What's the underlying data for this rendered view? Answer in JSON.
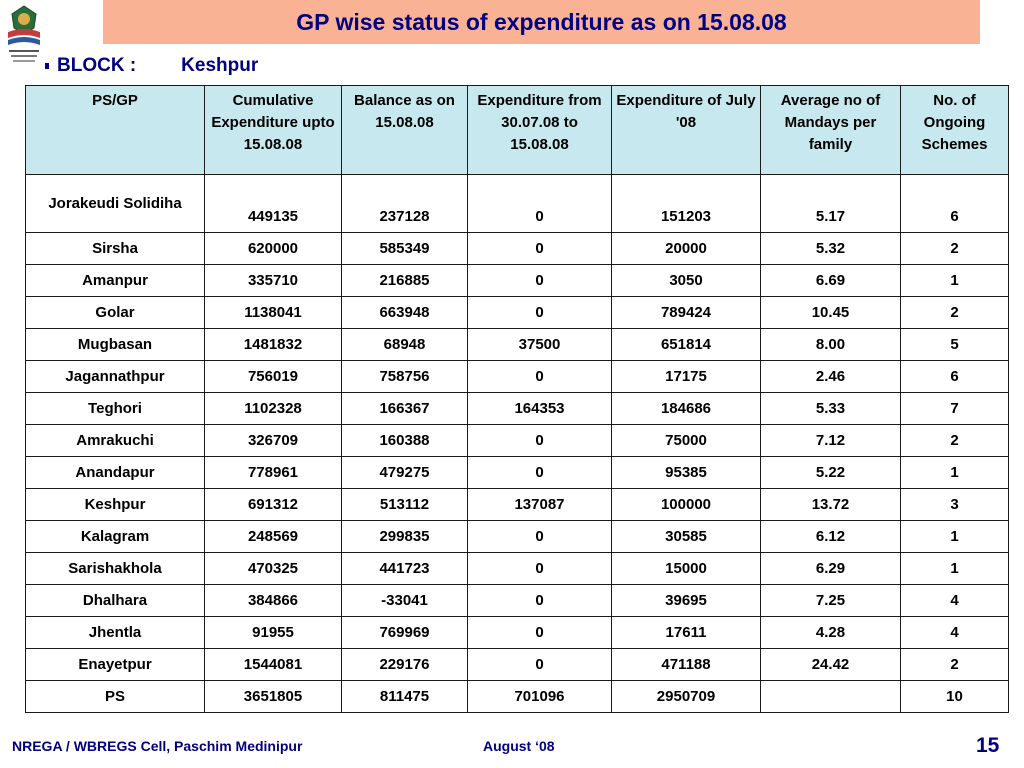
{
  "slide": {
    "title": "GP wise status of expenditure as on 15.08.08",
    "block_label": "BLOCK :",
    "block_value": "Keshpur",
    "footer_left": "NREGA / WBREGS Cell, Paschim Medinipur",
    "footer_mid": "August ‘08",
    "page_number": "15"
  },
  "colors": {
    "title_bg": "#f9b294",
    "title_text": "#000080",
    "header_bg": "#c7e8ee"
  },
  "logo": {
    "icon": "nrega-emblem-icon"
  },
  "table": {
    "headers": [
      "PS/GP",
      "Cumulative Expenditure upto 15.08.08",
      "Balance as on 15.08.08",
      "Expenditure from 30.07.08 to 15.08.08",
      "Expenditure of  July '08",
      "Average no of Mandays per family",
      "No. of Ongoing Schemes"
    ],
    "rows": [
      [
        "Jorakeudi Solidiha",
        "449135",
        "237128",
        "0",
        "151203",
        "5.17",
        "6"
      ],
      [
        "Sirsha",
        "620000",
        "585349",
        "0",
        "20000",
        "5.32",
        "2"
      ],
      [
        "Amanpur",
        "335710",
        "216885",
        "0",
        "3050",
        "6.69",
        "1"
      ],
      [
        "Golar",
        "1138041",
        "663948",
        "0",
        "789424",
        "10.45",
        "2"
      ],
      [
        "Mugbasan",
        "1481832",
        "68948",
        "37500",
        "651814",
        "8.00",
        "5"
      ],
      [
        "Jagannathpur",
        "756019",
        "758756",
        "0",
        "17175",
        "2.46",
        "6"
      ],
      [
        "Teghori",
        "1102328",
        "166367",
        "164353",
        "184686",
        "5.33",
        "7"
      ],
      [
        "Amrakuchi",
        "326709",
        "160388",
        "0",
        "75000",
        "7.12",
        "2"
      ],
      [
        "Anandapur",
        "778961",
        "479275",
        "0",
        "95385",
        "5.22",
        "1"
      ],
      [
        "Keshpur",
        "691312",
        "513112",
        "137087",
        "100000",
        "13.72",
        "3"
      ],
      [
        "Kalagram",
        "248569",
        "299835",
        "0",
        "30585",
        "6.12",
        "1"
      ],
      [
        "Sarishakhola",
        "470325",
        "441723",
        "0",
        "15000",
        "6.29",
        "1"
      ],
      [
        "Dhalhara",
        "384866",
        "-33041",
        "0",
        "39695",
        "7.25",
        "4"
      ],
      [
        "Jhentla",
        "91955",
        "769969",
        "0",
        "17611",
        "4.28",
        "4"
      ],
      [
        "Enayetpur",
        "1544081",
        "229176",
        "0",
        "471188",
        "24.42",
        "2"
      ],
      [
        "PS",
        "3651805",
        "811475",
        "701096",
        "2950709",
        "",
        "10"
      ]
    ]
  }
}
